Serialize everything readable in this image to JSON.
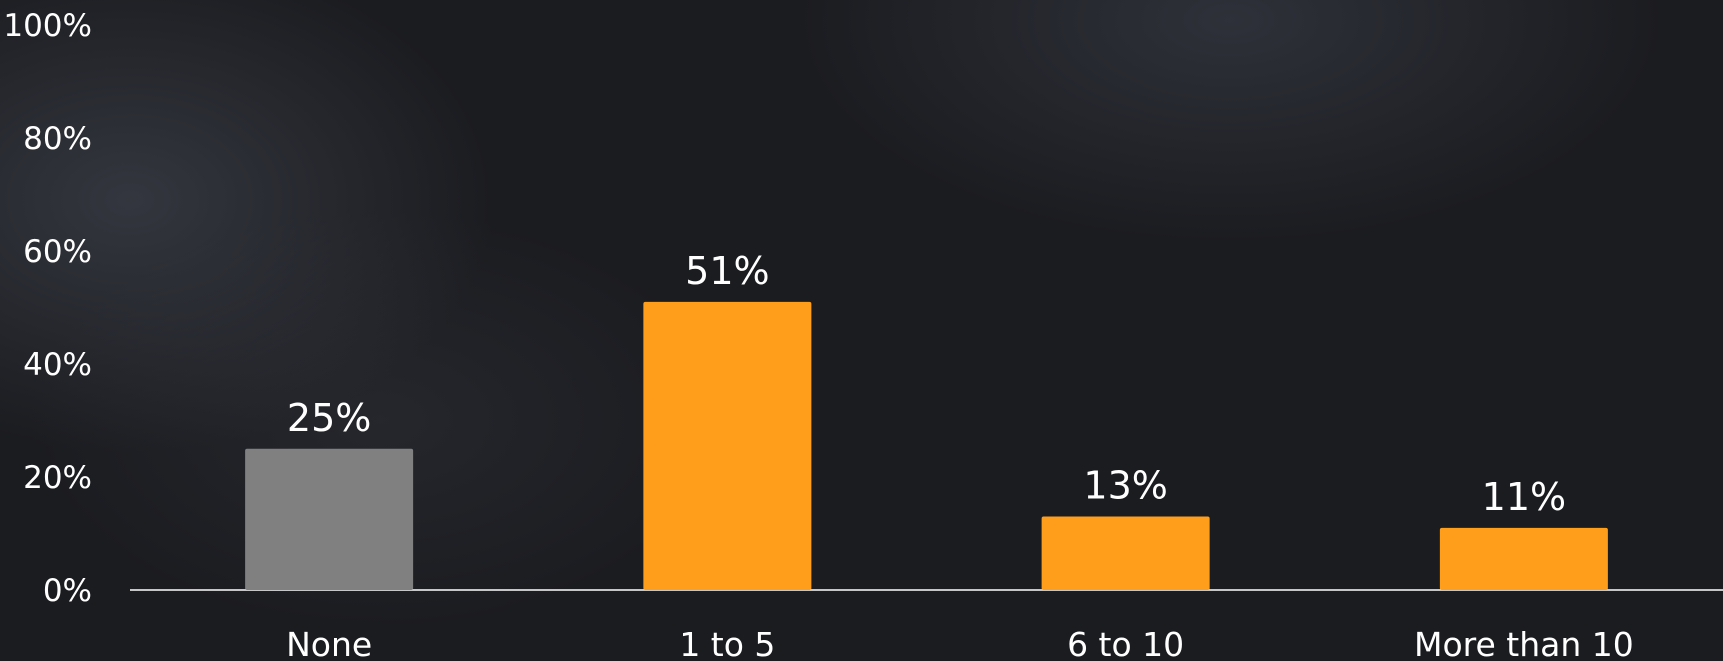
{
  "chart_data": {
    "type": "bar",
    "title": "",
    "xlabel": "",
    "ylabel": "",
    "categories": [
      "None",
      "1 to 5",
      "6 to 10",
      "More than 10"
    ],
    "values": [
      25,
      51,
      13,
      11
    ],
    "value_labels": [
      "25%",
      "51%",
      "13%",
      "11%"
    ],
    "bar_colors": [
      "#808080",
      "#ff9e1b",
      "#ff9e1b",
      "#ff9e1b"
    ],
    "ylim": [
      0,
      100
    ],
    "yticks": [
      0,
      20,
      40,
      60,
      80,
      100
    ],
    "ytick_labels": [
      "0%",
      "20%",
      "40%",
      "60%",
      "80%",
      "100%"
    ],
    "grid": false,
    "legend": "none"
  }
}
